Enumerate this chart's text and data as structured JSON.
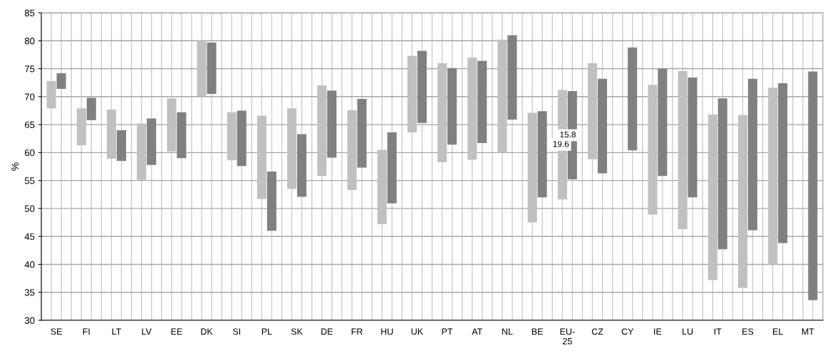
{
  "chart_data": {
    "type": "bar",
    "ylabel": "%",
    "categories": [
      "SE",
      "FI",
      "LT",
      "LV",
      "EE",
      "DK",
      "SI",
      "PL",
      "SK",
      "DE",
      "FR",
      "HU",
      "UK",
      "PT",
      "AT",
      "NL",
      "BE",
      "EU-\n25",
      "CZ",
      "CY",
      "IE",
      "LU",
      "IT",
      "ES",
      "EL",
      "MT"
    ],
    "series": [
      {
        "color": "#c0c0c0",
        "base": [
          67.9,
          61.3,
          58.9,
          55.1,
          60.2,
          70.1,
          58.6,
          51.7,
          53.5,
          55.8,
          53.3,
          47.2,
          63.6,
          58.3,
          58.7,
          60.0,
          47.5,
          51.6,
          58.8,
          null,
          48.9,
          46.3,
          37.2,
          35.8,
          40.0,
          null
        ],
        "values": [
          4.9,
          6.6,
          8.8,
          10.1,
          9.5,
          9.9,
          8.6,
          14.9,
          14.4,
          16.2,
          14.3,
          13.3,
          13.7,
          17.7,
          18.3,
          20.2,
          19.6,
          19.6,
          17.2,
          null,
          23.2,
          28.3,
          29.6,
          30.9,
          31.6,
          null
        ],
        "value_labels": [
          null,
          null,
          null,
          null,
          null,
          null,
          null,
          null,
          null,
          null,
          null,
          null,
          null,
          null,
          null,
          null,
          null,
          "19.6",
          null,
          null,
          null,
          null,
          null,
          null,
          null,
          null
        ]
      },
      {
        "color": "#808080",
        "base": [
          71.4,
          65.8,
          58.5,
          57.8,
          59.0,
          70.5,
          57.6,
          46.0,
          52.1,
          59.1,
          57.3,
          50.9,
          65.3,
          61.4,
          61.7,
          65.9,
          52.0,
          55.2,
          56.3,
          60.4,
          55.8,
          52.0,
          42.7,
          46.1,
          43.8,
          33.6
        ],
        "values": [
          2.8,
          4.0,
          5.5,
          8.3,
          8.2,
          9.2,
          9.9,
          10.6,
          11.2,
          12.0,
          12.3,
          12.7,
          12.9,
          13.7,
          14.7,
          15.1,
          15.4,
          15.8,
          16.9,
          18.4,
          19.2,
          21.4,
          27.0,
          27.1,
          28.6,
          40.9
        ],
        "value_labels": [
          null,
          null,
          null,
          null,
          null,
          null,
          null,
          null,
          null,
          null,
          null,
          null,
          null,
          null,
          null,
          null,
          null,
          "15.8",
          null,
          null,
          null,
          null,
          null,
          null,
          null,
          null
        ]
      }
    ],
    "ylim": [
      30,
      85
    ],
    "yticks": [
      30,
      35,
      40,
      45,
      50,
      55,
      60,
      65,
      70,
      75,
      80,
      85
    ],
    "grid": true
  }
}
